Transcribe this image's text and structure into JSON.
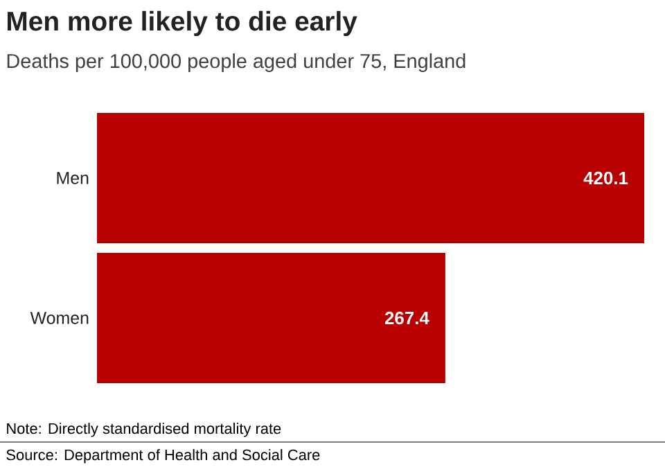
{
  "chart_data": {
    "type": "bar",
    "orientation": "horizontal",
    "title": "Men more likely to die early",
    "subtitle": "Deaths per 100,000 people aged under 75, England",
    "categories": [
      "Men",
      "Women"
    ],
    "values": [
      420.1,
      267.4
    ],
    "color": "#b80000",
    "data_labels": true,
    "xlim": [
      0,
      420.1
    ],
    "tick_labels": "y",
    "annotations": [
      "Note: Directly standardised mortality rate",
      "Source: Department of Health and Social Care"
    ]
  }
}
